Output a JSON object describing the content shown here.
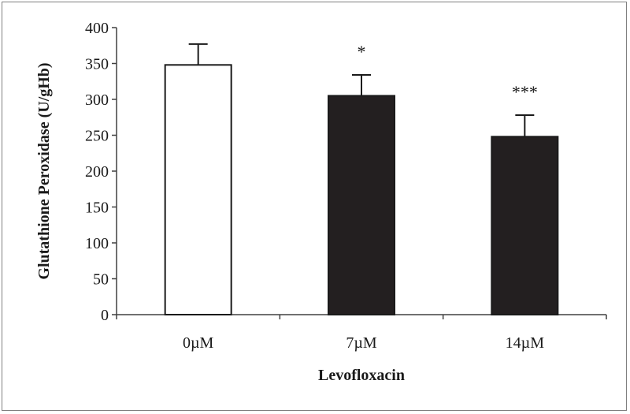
{
  "chart_data": {
    "type": "bar",
    "title": "",
    "xlabel": "Levofloxacin",
    "ylabel": "Glutathione Peroxidase (U/gHb)",
    "ylim": [
      0,
      400
    ],
    "yticks": [
      0,
      50,
      100,
      150,
      200,
      250,
      300,
      350,
      400
    ],
    "yticklabels": [
      "0",
      "50",
      "100",
      "150",
      "200",
      "250",
      "300",
      "350",
      "400"
    ],
    "grid": false,
    "legend": "none",
    "categories": [
      "0µM",
      "7µM",
      "14µM"
    ],
    "values": [
      348,
      305,
      248
    ],
    "errors": [
      29,
      29,
      30
    ],
    "annotations": [
      "",
      "*",
      "***"
    ],
    "colors": [
      "#ffffff",
      "#231f20",
      "#231f20"
    ]
  }
}
